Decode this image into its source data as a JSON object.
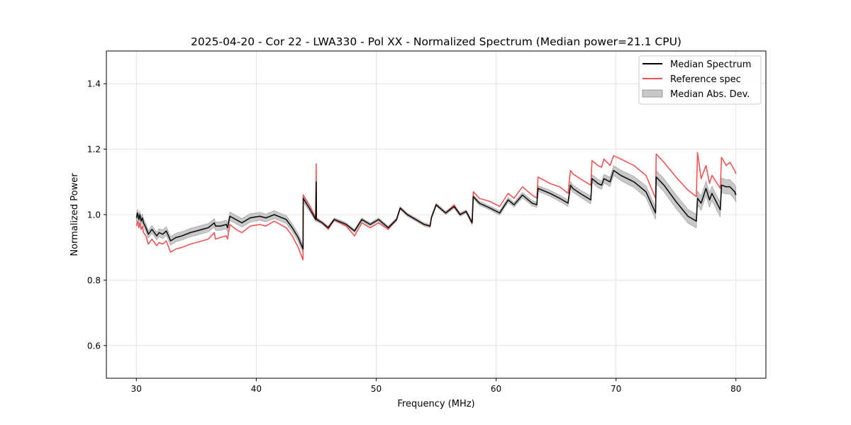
{
  "chart_data": {
    "type": "line",
    "title": "2025-04-20 - Cor 22 - LWA330 - Pol XX - Normalized Spectrum (Median power=21.1 CPU)",
    "xlabel": "Frequency (MHz)",
    "ylabel": "Normalized Power",
    "xlim": [
      27.5,
      82.5
    ],
    "ylim": [
      0.5,
      1.5
    ],
    "xticks": [
      30,
      40,
      50,
      60,
      70,
      80
    ],
    "xtick_labels": [
      "30",
      "40",
      "50",
      "60",
      "70",
      "80"
    ],
    "yticks": [
      0.6,
      0.8,
      1.0,
      1.2,
      1.4
    ],
    "ytick_labels": [
      "0.6",
      "0.8",
      "1.0",
      "1.2",
      "1.4"
    ],
    "grid": true,
    "legend_position": "top-right",
    "legend": [
      "Median Spectrum",
      "Reference spec",
      "Median Abs. Dev."
    ],
    "colors": {
      "median": "#000000",
      "reference": "#ee5555",
      "mad_fill": "#c8c8c8",
      "mad_edge": "#9a9a9a"
    },
    "series": [
      {
        "name": "Median Spectrum",
        "x": [
          30.0,
          30.1,
          30.2,
          30.3,
          30.4,
          30.5,
          30.6,
          30.8,
          31.0,
          31.3,
          31.7,
          31.9,
          32.2,
          32.5,
          32.8,
          32.85,
          33.3,
          33.8,
          34.5,
          35.5,
          36.0,
          36.5,
          36.6,
          37.0,
          37.5,
          37.6,
          37.8,
          38.3,
          38.8,
          39.5,
          40.3,
          40.8,
          41.5,
          42.5,
          43.0,
          43.5,
          43.9,
          43.92,
          44.5,
          44.95,
          45.0,
          45.02,
          45.5,
          46.0,
          46.5,
          47.2,
          47.5,
          48.2,
          48.8,
          49.5,
          50.2,
          51.0,
          51.7,
          52.0,
          52.6,
          53.3,
          54.0,
          54.5,
          54.6,
          55.0,
          55.8,
          56.5,
          57.0,
          57.5,
          58.0,
          58.1,
          58.6,
          59.5,
          60.3,
          61.0,
          61.5,
          62.2,
          63.0,
          63.4,
          63.5,
          64.5,
          65.3,
          66.0,
          66.2,
          66.4,
          67.0,
          67.9,
          68.0,
          68.5,
          68.8,
          69.0,
          69.5,
          69.8,
          70.4,
          71.5,
          72.5,
          73.3,
          73.35,
          74.0,
          75.0,
          76.0,
          76.7,
          76.8,
          77.1,
          77.5,
          77.8,
          78.0,
          78.7,
          78.8,
          79.2,
          79.5,
          79.9,
          80.0
        ],
        "values": [
          0.99,
          1.005,
          0.985,
          1.0,
          0.98,
          0.99,
          0.975,
          0.96,
          0.94,
          0.955,
          0.935,
          0.945,
          0.94,
          0.95,
          0.925,
          0.92,
          0.93,
          0.935,
          0.945,
          0.955,
          0.96,
          0.975,
          0.965,
          0.965,
          0.97,
          0.96,
          0.995,
          0.985,
          0.975,
          0.99,
          0.995,
          0.99,
          1.0,
          0.985,
          0.96,
          0.93,
          0.895,
          1.05,
          1.015,
          0.985,
          1.1,
          0.985,
          0.975,
          0.96,
          0.985,
          0.975,
          0.97,
          0.95,
          0.985,
          0.97,
          0.985,
          0.96,
          0.985,
          1.02,
          1.0,
          0.985,
          0.97,
          0.965,
          0.99,
          1.03,
          1.005,
          1.025,
          1.0,
          1.01,
          0.975,
          1.055,
          1.035,
          1.02,
          1.005,
          1.045,
          1.03,
          1.06,
          1.035,
          1.03,
          1.08,
          1.065,
          1.05,
          1.035,
          1.09,
          1.08,
          1.065,
          1.045,
          1.11,
          1.095,
          1.09,
          1.11,
          1.1,
          1.135,
          1.12,
          1.1,
          1.07,
          1.005,
          1.115,
          1.09,
          1.04,
          0.995,
          0.98,
          1.05,
          1.035,
          1.08,
          1.045,
          1.065,
          1.015,
          1.09,
          1.085,
          1.085,
          1.07,
          1.06
        ],
        "mad": [
          0.012,
          0.012,
          0.012,
          0.012,
          0.012,
          0.012,
          0.012,
          0.012,
          0.012,
          0.012,
          0.012,
          0.012,
          0.013,
          0.013,
          0.013,
          0.013,
          0.013,
          0.013,
          0.013,
          0.013,
          0.013,
          0.013,
          0.013,
          0.013,
          0.013,
          0.013,
          0.013,
          0.013,
          0.013,
          0.013,
          0.012,
          0.012,
          0.012,
          0.012,
          0.012,
          0.012,
          0.012,
          0.012,
          0.008,
          0.006,
          0.006,
          0.006,
          0.005,
          0.005,
          0.005,
          0.005,
          0.005,
          0.005,
          0.005,
          0.005,
          0.005,
          0.005,
          0.005,
          0.005,
          0.005,
          0.005,
          0.005,
          0.005,
          0.005,
          0.005,
          0.005,
          0.005,
          0.005,
          0.005,
          0.006,
          0.006,
          0.006,
          0.006,
          0.007,
          0.007,
          0.007,
          0.008,
          0.008,
          0.008,
          0.009,
          0.009,
          0.01,
          0.01,
          0.011,
          0.011,
          0.011,
          0.012,
          0.012,
          0.013,
          0.013,
          0.013,
          0.014,
          0.015,
          0.016,
          0.017,
          0.018,
          0.019,
          0.02,
          0.02,
          0.021,
          0.021,
          0.021,
          0.022,
          0.022,
          0.022,
          0.022,
          0.022,
          0.022,
          0.022,
          0.022,
          0.022,
          0.022,
          0.022
        ]
      },
      {
        "name": "Reference spec",
        "x": [
          30.0,
          30.1,
          30.2,
          30.3,
          30.4,
          30.5,
          30.6,
          30.8,
          31.0,
          31.3,
          31.7,
          31.9,
          32.2,
          32.5,
          32.8,
          32.85,
          33.3,
          33.8,
          34.5,
          35.5,
          36.0,
          36.5,
          36.6,
          37.0,
          37.5,
          37.6,
          37.8,
          38.3,
          38.8,
          39.5,
          40.3,
          40.8,
          41.5,
          42.5,
          43.0,
          43.5,
          43.9,
          43.92,
          44.5,
          44.95,
          45.0,
          45.02,
          45.5,
          46.0,
          46.5,
          47.2,
          47.5,
          48.2,
          48.8,
          49.5,
          50.2,
          51.0,
          51.7,
          52.0,
          52.6,
          53.3,
          54.0,
          54.5,
          54.6,
          55.0,
          55.8,
          56.5,
          57.0,
          57.5,
          58.0,
          58.1,
          58.6,
          59.5,
          60.3,
          61.0,
          61.5,
          62.2,
          63.0,
          63.4,
          63.5,
          64.5,
          65.3,
          66.0,
          66.2,
          66.4,
          67.0,
          67.9,
          68.0,
          68.5,
          68.8,
          69.0,
          69.5,
          69.8,
          70.4,
          71.5,
          72.5,
          73.3,
          73.35,
          74.0,
          75.0,
          76.0,
          76.7,
          76.8,
          77.1,
          77.5,
          77.8,
          78.0,
          78.7,
          78.8,
          79.2,
          79.5,
          79.9,
          80.0
        ],
        "values": [
          0.965,
          0.98,
          0.96,
          0.975,
          0.955,
          0.965,
          0.945,
          0.935,
          0.91,
          0.925,
          0.905,
          0.915,
          0.91,
          0.92,
          0.89,
          0.885,
          0.895,
          0.9,
          0.91,
          0.92,
          0.925,
          0.945,
          0.925,
          0.93,
          0.935,
          0.925,
          0.97,
          0.955,
          0.945,
          0.965,
          0.97,
          0.965,
          0.98,
          0.96,
          0.935,
          0.9,
          0.862,
          1.06,
          1.025,
          0.99,
          1.155,
          0.99,
          0.975,
          0.955,
          0.985,
          0.97,
          0.965,
          0.935,
          0.975,
          0.96,
          0.975,
          0.955,
          0.985,
          1.02,
          1.0,
          0.985,
          0.97,
          0.965,
          0.99,
          1.03,
          1.005,
          1.03,
          1.0,
          1.01,
          0.975,
          1.07,
          1.05,
          1.04,
          1.025,
          1.065,
          1.05,
          1.085,
          1.06,
          1.05,
          1.115,
          1.095,
          1.085,
          1.065,
          1.135,
          1.125,
          1.11,
          1.09,
          1.165,
          1.15,
          1.145,
          1.17,
          1.15,
          1.18,
          1.17,
          1.15,
          1.12,
          1.05,
          1.185,
          1.16,
          1.115,
          1.075,
          1.055,
          1.19,
          1.11,
          1.15,
          1.095,
          1.12,
          1.08,
          1.175,
          1.15,
          1.16,
          1.135,
          1.125
        ]
      }
    ]
  }
}
